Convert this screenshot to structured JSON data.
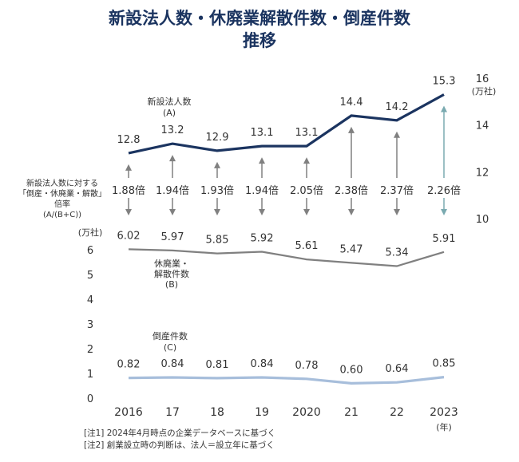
{
  "title_line1": "新設法人数・休廃業解散件数・倒産件数",
  "title_line2": "推移",
  "colors": {
    "title": "#1b3460",
    "new_corp": "#1b3460",
    "closures": "#808080",
    "bankrupt": "#a7bedb",
    "arrow": "#808080",
    "arrow_highlight": "#7aaab0"
  },
  "chart_data": {
    "type": "line",
    "categories": [
      "2016",
      "17",
      "18",
      "19",
      "2020",
      "21",
      "22",
      "2023"
    ],
    "x_unit": "(年)",
    "series": [
      {
        "name": "新設法人数(A)",
        "label_lines": [
          "新設法人数",
          "(A)"
        ],
        "axis": "right",
        "values": [
          12.8,
          13.2,
          12.9,
          13.1,
          13.1,
          14.4,
          14.2,
          15.3
        ],
        "labels": [
          "12.8",
          "13.2",
          "12.9",
          "13.1",
          "13.1",
          "14.4",
          "14.2",
          "15.3"
        ]
      },
      {
        "name": "休廃業・解散件数(B)",
        "label_lines": [
          "休廃業・",
          "解散件数",
          "(B)"
        ],
        "axis": "left",
        "values": [
          6.02,
          5.97,
          5.85,
          5.92,
          5.61,
          5.47,
          5.34,
          5.91
        ],
        "labels": [
          "6.02",
          "5.97",
          "5.85",
          "5.92",
          "5.61",
          "5.47",
          "5.34",
          "5.91"
        ]
      },
      {
        "name": "倒産件数(C)",
        "label_lines": [
          "倒産件数",
          "(C)"
        ],
        "axis": "left",
        "values": [
          0.82,
          0.84,
          0.81,
          0.84,
          0.78,
          0.6,
          0.64,
          0.85
        ],
        "labels": [
          "0.82",
          "0.84",
          "0.81",
          "0.84",
          "0.78",
          "0.60",
          "0.64",
          "0.85"
        ]
      }
    ],
    "ratio": {
      "label_lines": [
        "新設法人数に対する",
        "「倒産・休廃業・解散」",
        "倍率",
        "(A/(B+C))"
      ],
      "values": [
        1.88,
        1.94,
        1.93,
        1.94,
        2.05,
        2.38,
        2.37,
        2.26
      ],
      "labels": [
        "1.88倍",
        "1.94倍",
        "1.93倍",
        "1.94倍",
        "2.05倍",
        "2.38倍",
        "2.37倍",
        "2.26倍"
      ]
    },
    "left_axis": {
      "unit": "(万社)",
      "ticks": [
        "0",
        "1",
        "2",
        "3",
        "4",
        "5",
        "6"
      ],
      "range": [
        0,
        6
      ]
    },
    "right_axis": {
      "unit": "(万社)",
      "ticks": [
        "10",
        "12",
        "14",
        "16"
      ],
      "range": [
        10,
        16
      ]
    }
  },
  "notes": [
    "[注1] 2024年4月時点の企業データベースに基づく",
    "[注2] 創業設立時の判断は、法人＝設立年に基づく"
  ]
}
